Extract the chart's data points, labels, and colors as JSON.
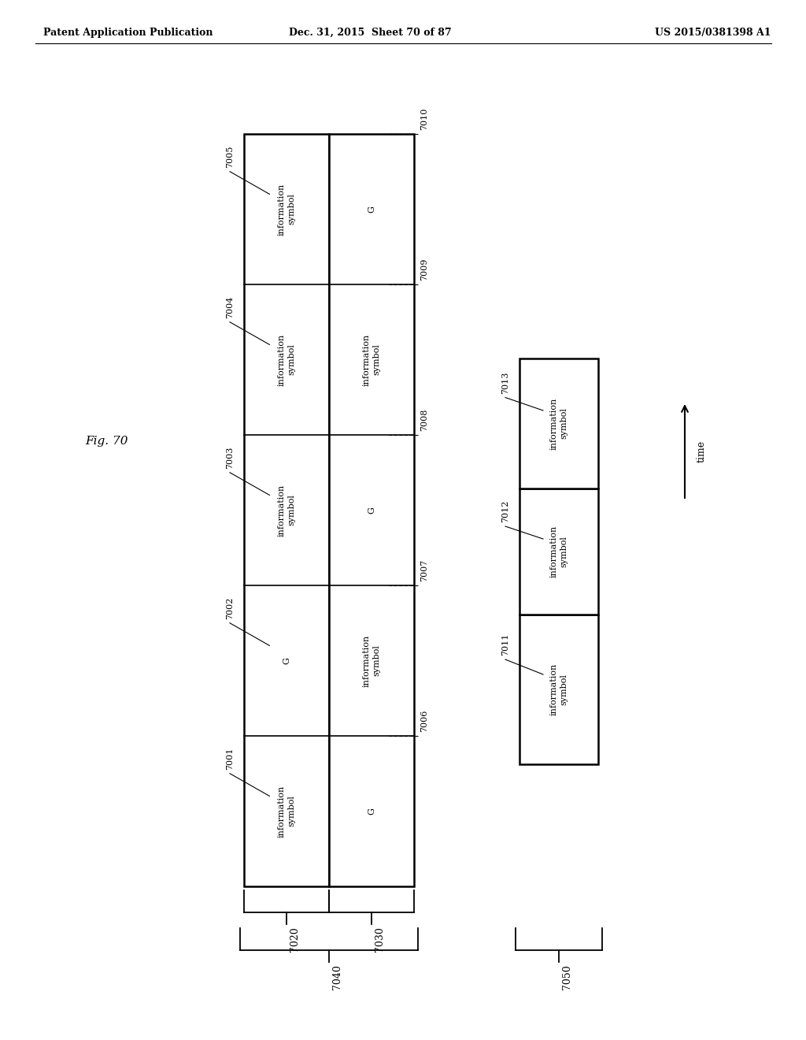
{
  "bg_color": "#ffffff",
  "header_left": "Patent Application Publication",
  "header_mid": "Dec. 31, 2015  Sheet 70 of 87",
  "header_right": "US 2015/0381398 A1",
  "fig_label": "Fig. 70",
  "left_strip_texts": [
    "information\nsymbol",
    "information\nsymbol",
    "information\nsymbol",
    "G",
    "information\nsymbol"
  ],
  "left_strip_labels": [
    "7005",
    "7004",
    "7003",
    "7002",
    "7001"
  ],
  "right_strip_texts": [
    "G",
    "information\nsymbol",
    "G",
    "information\nsymbol",
    "G"
  ],
  "right_strip_labels": [
    "7010",
    "7009",
    "7008",
    "7007",
    "7006"
  ],
  "right_col_texts": [
    "information\nsymbol",
    "information\nsymbol",
    "information\nsymbol"
  ],
  "right_col_labels": [
    "7013",
    "7012",
    "7011"
  ],
  "bracket_labels": [
    "7020",
    "7030",
    "7040",
    "7050"
  ],
  "time_label": "time"
}
